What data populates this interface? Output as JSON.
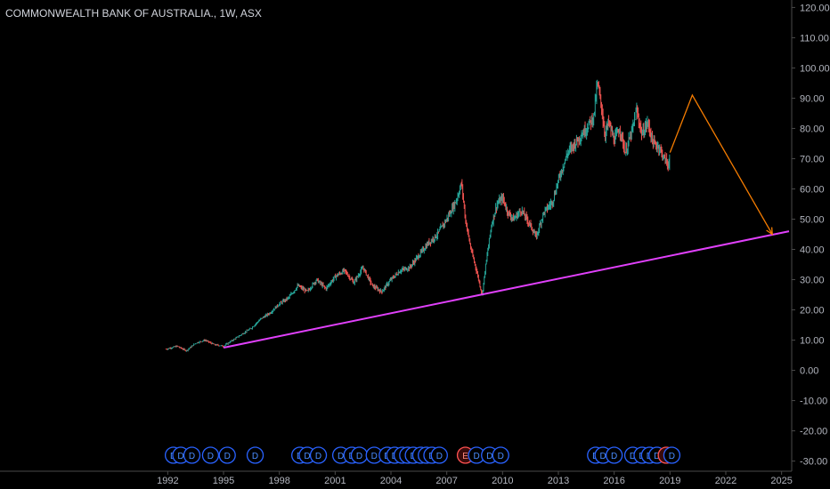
{
  "chart_data": {
    "type": "line",
    "title": "COMMONWEALTH BANK OF AUSTRALIA., 1W, ASX",
    "y_ticks": [
      "120.00",
      "110.00",
      "100.00",
      "90.00",
      "80.00",
      "70.00",
      "60.00",
      "50.00",
      "40.00",
      "30.00",
      "20.00",
      "10.00",
      "0.00",
      "-10.00",
      "-20.00",
      "-30.00"
    ],
    "y_tick_values": [
      120,
      110,
      100,
      90,
      80,
      70,
      60,
      50,
      40,
      30,
      20,
      10,
      0,
      -10,
      -20,
      -30
    ],
    "x_ticks": [
      "1992",
      "1995",
      "1998",
      "2001",
      "2004",
      "2007",
      "2010",
      "2013",
      "2016",
      "2019",
      "2022",
      "2025"
    ],
    "x_tick_values": [
      1992,
      1995,
      1998,
      2001,
      2004,
      2007,
      2010,
      2013,
      2016,
      2019,
      2022,
      2025
    ],
    "xlim": [
      1991.6,
      2025.4
    ],
    "ylim": [
      -31,
      121
    ],
    "price_series": {
      "name": "",
      "x": [
        1991.9,
        1992.5,
        1993.0,
        1993.5,
        1994.0,
        1994.5,
        1995.0,
        1995.5,
        1996.0,
        1996.5,
        1997.0,
        1997.5,
        1998.0,
        1998.5,
        1999.0,
        1999.5,
        2000.0,
        2000.5,
        2001.0,
        2001.5,
        2002.0,
        2002.5,
        2003.0,
        2003.5,
        2004.0,
        2004.5,
        2005.0,
        2005.5,
        2006.0,
        2006.5,
        2007.0,
        2007.5,
        2007.8,
        2008.0,
        2008.3,
        2008.6,
        2008.9,
        2009.1,
        2009.4,
        2009.7,
        2010.0,
        2010.3,
        2010.6,
        2011.0,
        2011.5,
        2011.8,
        2012.2,
        2012.7,
        2013.0,
        2013.5,
        2014.0,
        2014.5,
        2014.9,
        2015.1,
        2015.3,
        2015.5,
        2015.7,
        2016.0,
        2016.3,
        2016.6,
        2017.0,
        2017.2,
        2017.5,
        2017.8,
        2018.1,
        2018.4,
        2018.7,
        2018.9,
        2019.0
      ],
      "y": [
        7,
        8,
        6.5,
        9,
        10,
        8.5,
        8,
        10,
        12,
        14,
        17,
        19,
        22,
        24,
        28,
        26,
        30,
        27,
        31,
        33,
        29,
        34,
        28,
        26,
        30,
        33,
        34,
        38,
        42,
        45,
        50,
        56,
        62,
        50,
        40,
        33,
        25,
        35,
        48,
        55,
        57,
        52,
        50,
        53,
        48,
        44,
        52,
        56,
        63,
        72,
        76,
        80,
        84,
        95,
        88,
        78,
        82,
        76,
        80,
        72,
        80,
        86,
        78,
        82,
        75,
        74,
        70,
        68,
        71
      ]
    },
    "support_line": {
      "x": [
        1995.0,
        2025.4
      ],
      "y": [
        7.5,
        46
      ]
    },
    "projection": {
      "x": [
        2019.0,
        2020.2,
        2024.5
      ],
      "y": [
        72,
        91,
        45
      ]
    },
    "event_markers": [
      {
        "x": 1992.3,
        "label": "D",
        "kind": "dividend"
      },
      {
        "x": 1992.7,
        "label": "D",
        "kind": "dividend"
      },
      {
        "x": 1993.3,
        "label": "D",
        "kind": "dividend"
      },
      {
        "x": 1994.3,
        "label": "D",
        "kind": "dividend"
      },
      {
        "x": 1995.2,
        "label": "D",
        "kind": "dividend"
      },
      {
        "x": 1996.7,
        "label": "D",
        "kind": "dividend"
      },
      {
        "x": 1999.1,
        "label": "D",
        "kind": "dividend"
      },
      {
        "x": 1999.5,
        "label": "D",
        "kind": "dividend"
      },
      {
        "x": 2000.1,
        "label": "D",
        "kind": "dividend"
      },
      {
        "x": 2001.3,
        "label": "D",
        "kind": "dividend"
      },
      {
        "x": 2001.9,
        "label": "D",
        "kind": "dividend"
      },
      {
        "x": 2002.3,
        "label": "D",
        "kind": "dividend"
      },
      {
        "x": 2003.1,
        "label": "D",
        "kind": "dividend"
      },
      {
        "x": 2003.8,
        "label": "D",
        "kind": "dividend"
      },
      {
        "x": 2004.2,
        "label": "D",
        "kind": "dividend"
      },
      {
        "x": 2004.6,
        "label": "D",
        "kind": "dividend"
      },
      {
        "x": 2004.9,
        "label": "D",
        "kind": "dividend"
      },
      {
        "x": 2005.2,
        "label": "D",
        "kind": "dividend"
      },
      {
        "x": 2005.6,
        "label": "D",
        "kind": "dividend"
      },
      {
        "x": 2005.9,
        "label": "D",
        "kind": "dividend"
      },
      {
        "x": 2006.2,
        "label": "D",
        "kind": "dividend"
      },
      {
        "x": 2006.6,
        "label": "D",
        "kind": "dividend"
      },
      {
        "x": 2008.0,
        "label": "E",
        "kind": "earnings"
      },
      {
        "x": 2008.6,
        "label": "D",
        "kind": "dividend"
      },
      {
        "x": 2009.3,
        "label": "D",
        "kind": "dividend"
      },
      {
        "x": 2009.9,
        "label": "D",
        "kind": "dividend"
      },
      {
        "x": 2015.0,
        "label": "D",
        "kind": "dividend"
      },
      {
        "x": 2015.4,
        "label": "D",
        "kind": "dividend"
      },
      {
        "x": 2016.0,
        "label": "D",
        "kind": "dividend"
      },
      {
        "x": 2017.0,
        "label": "D",
        "kind": "dividend"
      },
      {
        "x": 2017.5,
        "label": "D",
        "kind": "dividend"
      },
      {
        "x": 2017.9,
        "label": "D",
        "kind": "dividend"
      },
      {
        "x": 2018.3,
        "label": "D",
        "kind": "dividend"
      },
      {
        "x": 2018.8,
        "label": "E",
        "kind": "earnings"
      },
      {
        "x": 2019.1,
        "label": "D",
        "kind": "dividend"
      }
    ],
    "colors": {
      "background": "#000000",
      "price_up": "#26a69a",
      "price_down": "#ef5350",
      "support_line": "#e040fb",
      "projection": "#f57c00",
      "axis_text": "#b2b5be",
      "dividend_marker": "#2962ff",
      "earnings_marker": "#ff5252"
    },
    "grid": false
  }
}
